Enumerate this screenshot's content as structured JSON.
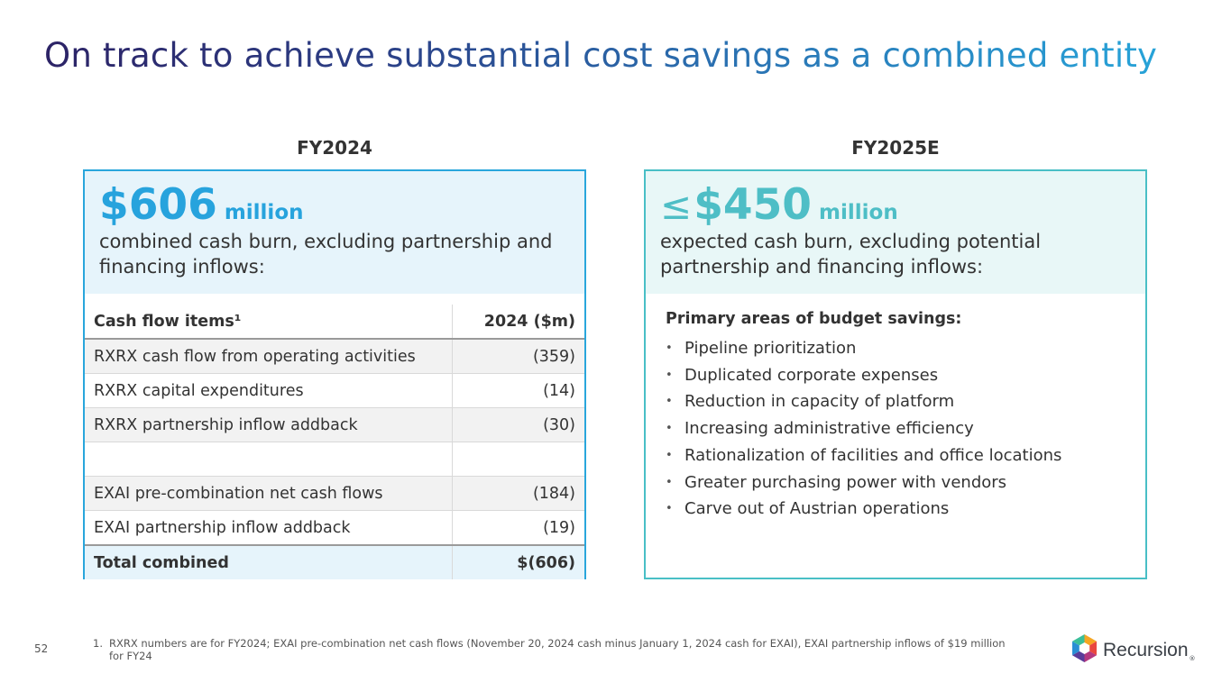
{
  "slide": {
    "title": "On track to achieve substantial cost savings as a combined entity",
    "page_number": "52"
  },
  "left": {
    "heading": "FY2024",
    "amount": "$606",
    "unit": "million",
    "description": "combined cash burn, excluding partnership and financing inflows:",
    "table": {
      "headers": [
        "Cash flow items¹",
        "2024 ($m)"
      ],
      "rows": [
        {
          "item": "RXRX cash flow from operating activities",
          "value": "(359)"
        },
        {
          "item": "RXRX capital expenditures",
          "value": "(14)"
        },
        {
          "item": "RXRX partnership inflow addback",
          "value": "(30)"
        },
        {
          "item": "",
          "value": ""
        },
        {
          "item": "EXAI pre-combination net cash flows",
          "value": "(184)"
        },
        {
          "item": "EXAI partnership inflow addback",
          "value": "(19)"
        }
      ],
      "total": {
        "item": "Total combined",
        "value": "$(606)"
      }
    }
  },
  "right": {
    "heading": "FY2025E",
    "symbol": "≤",
    "amount": "$450",
    "unit": "million",
    "description": "expected cash burn, excluding potential partnership and financing inflows:",
    "savings_heading": "Primary areas of budget savings:",
    "savings_items": [
      "Pipeline prioritization",
      "Duplicated corporate expenses",
      "Reduction in capacity of platform",
      "Increasing administrative efficiency",
      "Rationalization of facilities and office locations",
      "Greater purchasing power with vendors",
      "Carve out of Austrian operations"
    ]
  },
  "footnote": {
    "number": "1.",
    "text": "RXRX numbers are for FY2024; EXAI pre-combination net cash flows (November 20, 2024 cash minus January 1, 2024 cash for EXAI), EXAI partnership inflows of $19 million for FY24"
  },
  "logo": {
    "name": "Recursion",
    "registered": "®",
    "icon": "recursion-hexagon-icon"
  }
}
